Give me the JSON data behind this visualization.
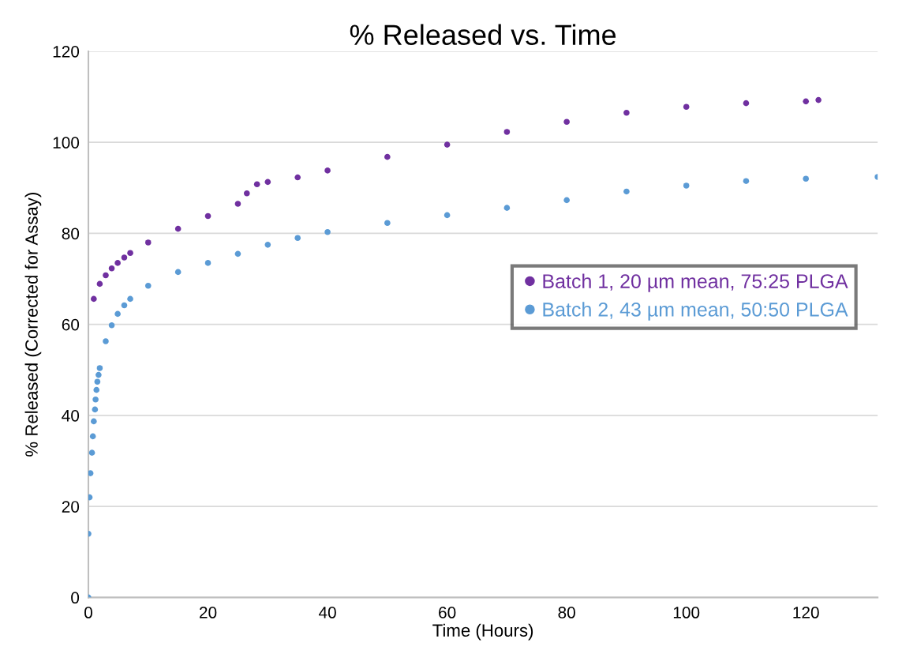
{
  "chart_data": {
    "type": "scatter",
    "title": "% Released vs. Time",
    "xlabel": "Time (Hours)",
    "ylabel": "% Released (Corrected for Assay)",
    "xlim": [
      0,
      132
    ],
    "xticks": [
      0,
      20,
      40,
      60,
      80,
      100,
      120
    ],
    "ylim": [
      0,
      120
    ],
    "yticks": [
      0,
      20,
      40,
      60,
      80,
      100,
      120
    ],
    "grid": "y",
    "legend": "right",
    "marker": "circle",
    "series": [
      {
        "name": "Batch 1, 20 µm mean, 75:25 PLGA",
        "color": "#7030a0",
        "x": [
          0.9,
          1.9,
          2.9,
          3.9,
          4.9,
          6,
          7,
          10,
          15,
          20,
          25,
          26.5,
          28.2,
          30,
          35,
          40,
          50,
          60,
          70,
          80,
          90,
          100,
          110,
          120,
          122.1
        ],
        "values": [
          65.6,
          68.9,
          70.8,
          72.3,
          73.5,
          74.7,
          75.7,
          78,
          81,
          83.8,
          86.5,
          88.8,
          90.8,
          91.3,
          92.3,
          93.8,
          96.8,
          99.5,
          102.3,
          104.5,
          106.5,
          107.8,
          108.6,
          109,
          109.3
        ]
      },
      {
        "name": "Batch 2, 43 µm mean, 50:50 PLGA",
        "color": "#5b9bd5",
        "x": [
          0,
          0,
          0.2,
          0.35,
          0.6,
          0.75,
          0.9,
          1.1,
          1.2,
          1.35,
          1.5,
          1.7,
          1.9,
          2.9,
          3.9,
          4.9,
          6,
          7,
          10,
          15,
          20,
          25,
          30,
          35,
          40,
          50,
          60,
          70,
          80,
          90,
          100,
          110,
          120,
          132
        ],
        "values": [
          0,
          14,
          22,
          27.3,
          31.8,
          35.4,
          38.7,
          41.3,
          43.5,
          45.6,
          47.4,
          48.9,
          50.4,
          56.3,
          59.8,
          62.3,
          64.2,
          65.6,
          68.5,
          71.5,
          73.5,
          75.5,
          77.5,
          79,
          80.3,
          82.3,
          84,
          85.6,
          87.3,
          89.2,
          90.5,
          91.5,
          92,
          92.4
        ]
      }
    ]
  }
}
